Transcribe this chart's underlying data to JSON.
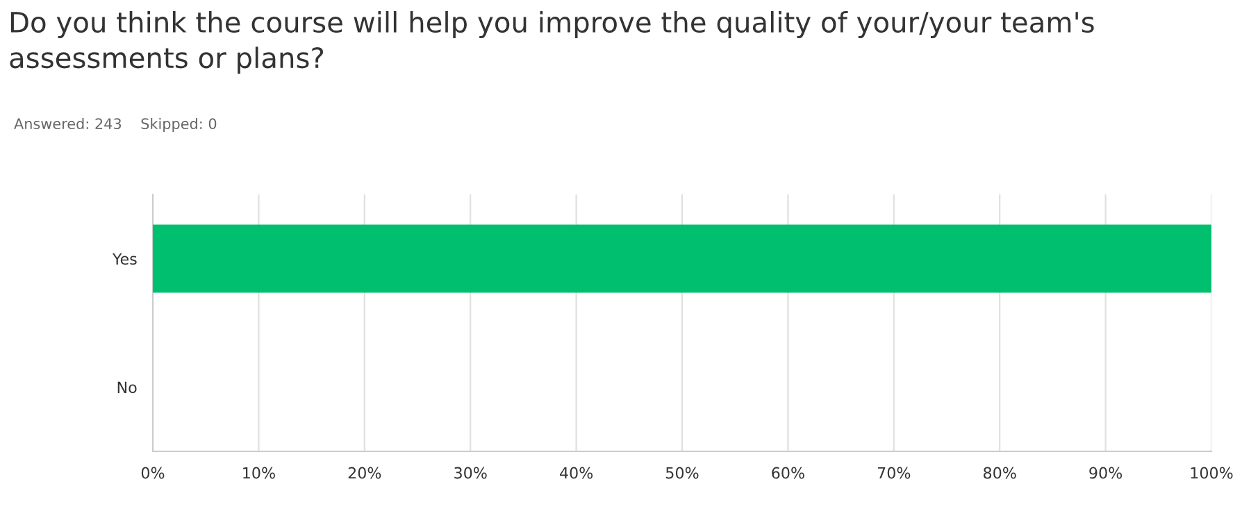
{
  "chart_data": {
    "type": "bar",
    "orientation": "horizontal",
    "title": "Do you think the course will help you improve the quality of your/your team's assessments or plans?",
    "subtitle": "Answered: 243    Skipped: 0",
    "categories": [
      "Yes",
      "No"
    ],
    "values": [
      100,
      0
    ],
    "color": "#00bf6f",
    "xlim": [
      0,
      100
    ],
    "xticks": [
      {
        "value": 0,
        "label": "0%"
      },
      {
        "value": 10,
        "label": "10%"
      },
      {
        "value": 20,
        "label": "20%"
      },
      {
        "value": 30,
        "label": "30%"
      },
      {
        "value": 40,
        "label": "40%"
      },
      {
        "value": 50,
        "label": "50%"
      },
      {
        "value": 60,
        "label": "60%"
      },
      {
        "value": 70,
        "label": "70%"
      },
      {
        "value": 80,
        "label": "80%"
      },
      {
        "value": 90,
        "label": "90%"
      },
      {
        "value": 100,
        "label": "100%"
      }
    ],
    "grid": "x",
    "legend": false
  }
}
